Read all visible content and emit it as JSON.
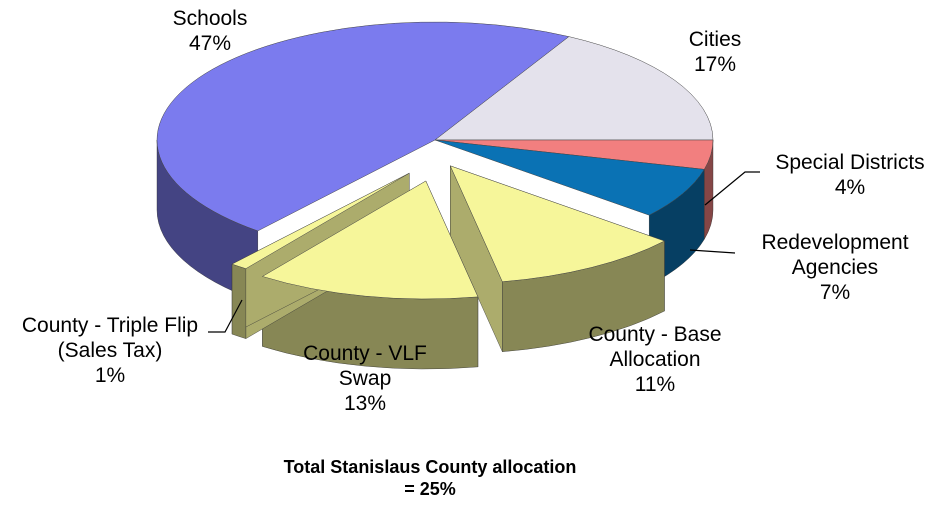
{
  "chart_data": {
    "type": "pie",
    "categories": [
      "Schools",
      "Cities",
      "Special Districts",
      "Redevelopment Agencies",
      "County - Base Allocation",
      "County - VLF Swap",
      "County - Triple Flip (Sales Tax)"
    ],
    "values": [
      47,
      17,
      4,
      7,
      11,
      13,
      1
    ],
    "value_labels": [
      "47%",
      "17%",
      "4%",
      "7%",
      "11%",
      "13%",
      "1%"
    ],
    "colors": [
      "#7b7bee",
      "#e4e2ec",
      "#f27f7f",
      "#0a72b4",
      "#f6f69a",
      "#f6f69a",
      "#f6f69a"
    ],
    "annotation": "Total Stanislaus County allocation = 25%"
  }
}
